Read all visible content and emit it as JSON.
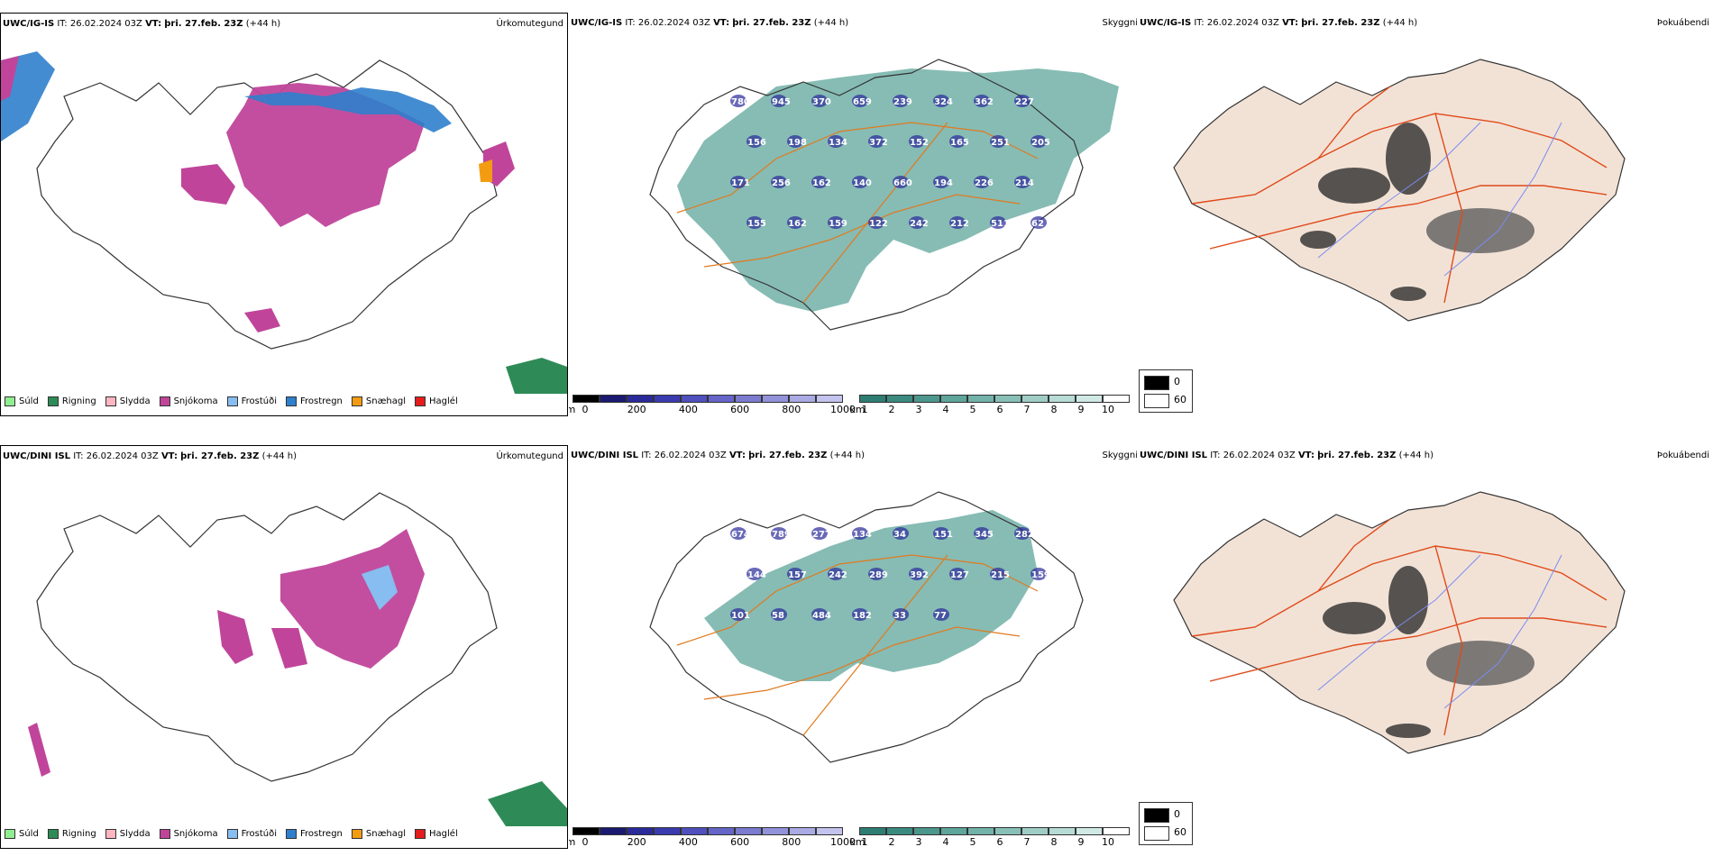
{
  "rows": [
    {
      "model": "UWC/IG-IS",
      "it_label": "IT:",
      "it_value": "26.02.2024 03Z",
      "vt_label": "VT:",
      "vt_value": "þri. 27.feb. 23Z",
      "lead": "(+44 h)"
    },
    {
      "model": "UWC/DINI ISL",
      "it_label": "IT:",
      "it_value": "26.02.2024 03Z",
      "vt_label": "VT:",
      "vt_value": "þri. 27.feb. 23Z",
      "lead": "(+44 h)"
    }
  ],
  "fields": {
    "precip": "Úrkomutegund",
    "cloud": "Skyggni",
    "fog": "Þokuábendi"
  },
  "precip_legend": [
    {
      "label": "Súld",
      "color": "#90ee90"
    },
    {
      "label": "Rigning",
      "color": "#2e8b57"
    },
    {
      "label": "Slydda",
      "color": "#ffb6c1"
    },
    {
      "label": "Snjókoma",
      "color": "#c0459a"
    },
    {
      "label": "Frostúði",
      "color": "#87bdf0"
    },
    {
      "label": "Frostregn",
      "color": "#2f80cc"
    },
    {
      "label": "Snæhagl",
      "color": "#f39c12"
    },
    {
      "label": "Haglél",
      "color": "#e51c1c"
    }
  ],
  "cloud_base_bar": {
    "unit": "m",
    "ticks": [
      "0",
      "200",
      "400",
      "600",
      "800",
      "1000"
    ],
    "colors": [
      "#000000",
      "#1a1a70",
      "#2a2a9a",
      "#3b3bb0",
      "#4f4fbe",
      "#6565c8",
      "#7b7bd0",
      "#9292da",
      "#aaaae4",
      "#c3c3ee"
    ]
  },
  "visibility_bar": {
    "unit": "km",
    "ticks": [
      "1",
      "2",
      "3",
      "4",
      "5",
      "6",
      "7",
      "8",
      "9",
      "10"
    ],
    "colors": [
      "#2e7d72",
      "#3b8a80",
      "#4b978d",
      "#5ea59b",
      "#72b2a9",
      "#88c0b8",
      "#9fcdc6",
      "#b7dbd5",
      "#d0e9e5",
      "#ffffff"
    ]
  },
  "fog_legend": {
    "values": [
      "0",
      "60"
    ],
    "colors": [
      "#000000",
      "#ffffff"
    ]
  },
  "cloud_labels_top": [
    "780",
    "945",
    "370",
    "659",
    "239",
    "324",
    "362",
    "227",
    "156",
    "198",
    "134",
    "372",
    "152",
    "165",
    "251",
    "205",
    "171",
    "256",
    "162",
    "140",
    "660",
    "194",
    "226",
    "214",
    "155",
    "162",
    "159",
    "122",
    "242",
    "212",
    "511",
    "62"
  ],
  "cloud_labels_bottom": [
    "674",
    "789",
    "277",
    "134",
    "34",
    "151",
    "345",
    "282",
    "144",
    "157",
    "242",
    "289",
    "392",
    "127",
    "215",
    "159",
    "101",
    "58",
    "484",
    "182",
    "33",
    "77"
  ]
}
